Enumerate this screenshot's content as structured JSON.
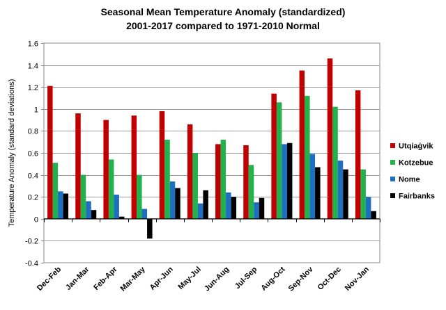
{
  "chart_data": {
    "type": "bar",
    "title_line1": "Seasonal Mean Temperature Anomaly (standardized)",
    "title_line2": "2001-2017 compared to 1971-2010 Normal",
    "xlabel": "",
    "ylabel": "Temperature Anomaly (standard deviations)",
    "ylim": [
      -0.4,
      1.6
    ],
    "ytick_step": 0.2,
    "yticks": [
      "-0.4",
      "-0.2",
      "0",
      "0.2",
      "0.4",
      "0.6",
      "0.8",
      "1",
      "1.2",
      "1.4",
      "1.6"
    ],
    "grid": true,
    "legend_position": "right",
    "categories": [
      "Dec-Feb",
      "Jan-Mar",
      "Feb-Apr",
      "Mar-May",
      "Apr-Jun",
      "May-Jul",
      "Jun-Aug",
      "Jul-Sep",
      "Aug-Oct",
      "Sep-Nov",
      "Oct-Dec",
      "Nov-Jan"
    ],
    "series": [
      {
        "name": "Utqiaġvik",
        "color": "#c00000",
        "values": [
          1.21,
          0.96,
          0.9,
          0.94,
          0.98,
          0.86,
          0.68,
          0.67,
          1.14,
          1.35,
          1.46,
          1.17
        ]
      },
      {
        "name": "Kotzebue",
        "color": "#22b14c",
        "values": [
          0.51,
          0.4,
          0.54,
          0.4,
          0.72,
          0.6,
          0.72,
          0.49,
          1.06,
          1.12,
          1.02,
          0.45
        ]
      },
      {
        "name": "Nome",
        "color": "#1f6fc0",
        "values": [
          0.25,
          0.16,
          0.22,
          0.09,
          0.34,
          0.14,
          0.24,
          0.15,
          0.68,
          0.59,
          0.53,
          0.2
        ]
      },
      {
        "name": "Fairbanks",
        "color": "#000000",
        "values": [
          0.23,
          0.08,
          0.02,
          -0.18,
          0.28,
          0.26,
          0.2,
          0.19,
          0.69,
          0.47,
          0.45,
          0.07
        ]
      }
    ]
  }
}
